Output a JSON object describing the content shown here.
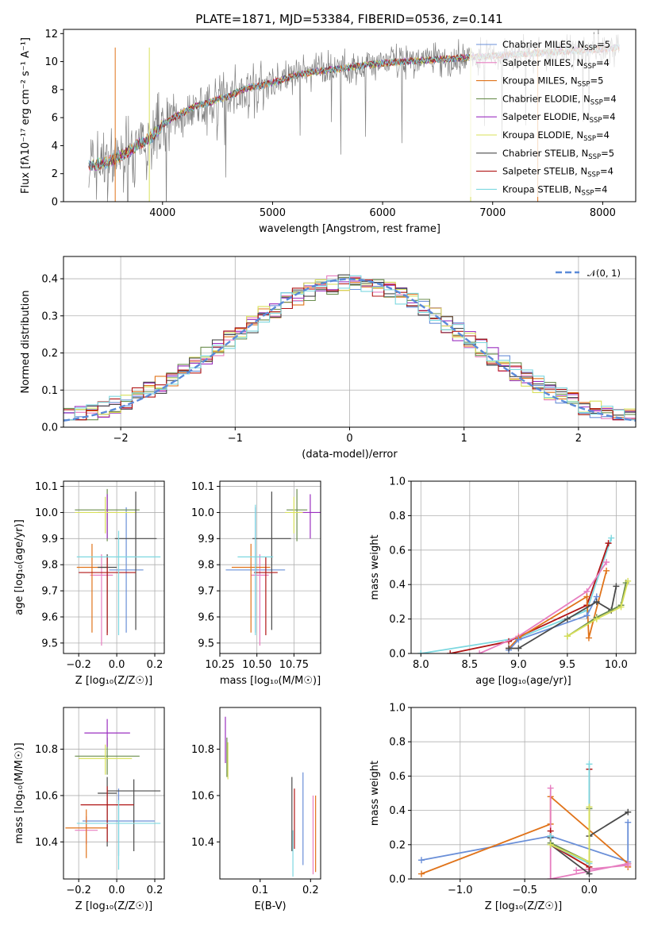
{
  "colors": {
    "chabrier_miles": "#6a8fd8",
    "salpeter_miles": "#e77ec0",
    "kroupa_miles": "#e0731a",
    "chabrier_elodie": "#6b8e4e",
    "salpeter_elodie": "#9b30c0",
    "kroupa_elodie": "#d8e05a",
    "chabrier_stelib": "#4a4a4a",
    "salpeter_stelib": "#b01515",
    "kroupa_stelib": "#7dd8e0",
    "spectrum": "#808080",
    "grid": "#b0b0b0",
    "gaussian": "#5a8ad8"
  },
  "chart_data": [
    {
      "id": "spectrum",
      "type": "line",
      "title": "PLATE=1871, MJD=53384, FIBERID=0536, z=0.141",
      "xlabel": "wavelength [Angstrom, rest frame]",
      "ylabel": "Flux [fλ10⁻¹⁷ erg cm⁻² s⁻¹ A⁻¹]",
      "xlim": [
        3100,
        8300
      ],
      "ylim": [
        0,
        12.3
      ],
      "xticks": [
        "4000",
        "5000",
        "6000",
        "7000",
        "8000"
      ],
      "yticks": [
        "0",
        "2",
        "4",
        "6",
        "8",
        "10",
        "12"
      ],
      "grid": false,
      "legend_position": "right",
      "legend": [
        "Chabrier MILES, N_SSP=5",
        "Salpeter MILES, N_SSP=4",
        "Kroupa MILES, N_SSP=5",
        "Chabrier ELODIE, N_SSP=4",
        "Salpeter ELODIE, N_SSP=4",
        "Kroupa ELODIE, N_SSP=4",
        "Chabrier STELIB, N_SSP=5",
        "Salpeter STELIB, N_SSP=4",
        "Kroupa STELIB, N_SSP=4"
      ],
      "continuum": {
        "x": [
          3330,
          3500,
          3600,
          3700,
          3800,
          3900,
          4000,
          4100,
          4200,
          4300,
          4400,
          4500,
          4600,
          4700,
          4800,
          4900,
          5000,
          5200,
          5400,
          5600,
          5800,
          6000,
          6200,
          6400,
          6600,
          6800,
          7000,
          7200,
          7400,
          7600,
          7800,
          8000,
          8150
        ],
        "y": [
          2.6,
          2.8,
          3.2,
          3.6,
          4.2,
          4.6,
          5.5,
          6.0,
          6.4,
          6.8,
          7.0,
          7.3,
          7.5,
          7.9,
          8.2,
          8.3,
          8.5,
          9.0,
          9.3,
          9.5,
          9.7,
          9.9,
          10.0,
          10.1,
          10.2,
          10.3,
          10.4,
          10.5,
          10.6,
          10.7,
          10.8,
          10.9,
          11.0
        ]
      }
    },
    {
      "id": "residuals",
      "type": "bar",
      "xlabel": "(data-model)/error",
      "ylabel": "Normed distribution",
      "xlim": [
        -2.5,
        2.5
      ],
      "ylim": [
        0,
        0.46
      ],
      "xticks": [
        "−2",
        "−1",
        "0",
        "1",
        "2"
      ],
      "yticks": [
        "0.0",
        "0.1",
        "0.2",
        "0.3",
        "0.4"
      ],
      "grid": true,
      "legend": [
        "𝒩(0, 1)"
      ],
      "legend_position": "top-right",
      "bin_width": 0.1
    },
    {
      "id": "age_vs_Z",
      "type": "scatter",
      "xlabel": "Z [log₁₀(Z/Z☉)]",
      "ylabel": "age  [log₁₀(age/yr)]",
      "xlim": [
        -0.28,
        0.25
      ],
      "ylim": [
        9.46,
        10.12
      ],
      "xticks": [
        "−0.2",
        "0.0",
        "0.2"
      ],
      "yticks": [
        "9.5",
        "9.6",
        "9.7",
        "9.8",
        "9.9",
        "10.0",
        "10.1"
      ],
      "grid": true,
      "points": [
        {
          "key": "chabrier_miles",
          "x": 0.05,
          "y": 9.78,
          "xerr": 0.09,
          "yerr": [
            0.24,
            0.24
          ]
        },
        {
          "key": "salpeter_miles",
          "x": -0.08,
          "y": 9.76,
          "xerr": 0.06,
          "yerr": [
            0.27,
            0.08
          ]
        },
        {
          "key": "kroupa_miles",
          "x": -0.13,
          "y": 9.79,
          "xerr": 0.08,
          "yerr": [
            0.25,
            0.09
          ]
        },
        {
          "key": "chabrier_elodie",
          "x": -0.05,
          "y": 10.01,
          "xerr": 0.17,
          "yerr": [
            0.12,
            0.08
          ]
        },
        {
          "key": "salpeter_elodie",
          "x": -0.05,
          "y": 10.0,
          "xerr": 0.05,
          "yerr": [
            0.1,
            0.07
          ]
        },
        {
          "key": "kroupa_elodie",
          "x": -0.06,
          "y": 10.0,
          "xerr": 0.16,
          "yerr": [
            0.08,
            0.06
          ]
        },
        {
          "key": "chabrier_stelib",
          "x": -0.05,
          "y": 9.79,
          "xerr": 0.05,
          "yerr": [
            0.25,
            0.05
          ]
        },
        {
          "key": "chabrier_stelib_b",
          "x": 0.1,
          "y": 9.9,
          "xerr": 0.11,
          "yerr": [
            0.35,
            0.18
          ]
        },
        {
          "key": "salpeter_stelib",
          "x": -0.05,
          "y": 9.77,
          "xerr": 0.15,
          "yerr": [
            0.24,
            0.06
          ]
        },
        {
          "key": "kroupa_stelib",
          "x": 0.01,
          "y": 9.83,
          "xerr": 0.22,
          "yerr": [
            0.3,
            0.1
          ]
        }
      ]
    },
    {
      "id": "age_vs_mass",
      "type": "scatter",
      "xlabel": "mass [log₁₀(M/M☉)]",
      "xlim": [
        10.25,
        10.93
      ],
      "ylim": [
        9.46,
        10.12
      ],
      "xticks": [
        "10.25",
        "10.50",
        "10.75"
      ],
      "yticks": [
        "9.5",
        "9.6",
        "9.7",
        "9.8",
        "9.9",
        "10.0",
        "10.1"
      ],
      "grid": true,
      "points": [
        {
          "key": "chabrier_miles",
          "x": 10.49,
          "y": 9.78,
          "xerr": 0.2,
          "yerr": [
            0.24,
            0.24
          ]
        },
        {
          "key": "salpeter_miles",
          "x": 10.52,
          "y": 9.76,
          "xerr": 0.06,
          "yerr": [
            0.27,
            0.08
          ]
        },
        {
          "key": "kroupa_miles",
          "x": 10.46,
          "y": 9.79,
          "xerr": 0.13,
          "yerr": [
            0.25,
            0.09
          ]
        },
        {
          "key": "chabrier_elodie",
          "x": 10.77,
          "y": 10.01,
          "xerr": 0.07,
          "yerr": [
            0.12,
            0.08
          ]
        },
        {
          "key": "salpeter_elodie",
          "x": 10.86,
          "y": 10.0,
          "xerr": 0.08,
          "yerr": [
            0.1,
            0.07
          ]
        },
        {
          "key": "kroupa_elodie",
          "x": 10.75,
          "y": 10.0,
          "xerr": 0.06,
          "yerr": [
            0.08,
            0.06
          ]
        },
        {
          "key": "chabrier_stelib",
          "x": 10.6,
          "y": 9.9,
          "xerr": 0.13,
          "yerr": [
            0.35,
            0.18
          ]
        },
        {
          "key": "salpeter_stelib",
          "x": 10.56,
          "y": 9.77,
          "xerr": 0.08,
          "yerr": [
            0.24,
            0.06
          ]
        },
        {
          "key": "kroupa_stelib",
          "x": 10.49,
          "y": 9.83,
          "xerr": 0.12,
          "yerr": [
            0.3,
            0.2
          ]
        }
      ]
    },
    {
      "id": "weight_vs_age",
      "type": "line",
      "xlabel": "age  [log₁₀(age/yr)]",
      "ylabel": "mass weight",
      "xlim": [
        7.9,
        10.2
      ],
      "ylim": [
        0,
        1.0
      ],
      "xticks": [
        "8.0",
        "8.5",
        "9.0",
        "9.5",
        "10.0"
      ],
      "yticks": [
        "0.0",
        "0.2",
        "0.4",
        "0.6",
        "0.8",
        "1.0"
      ],
      "grid": true,
      "series": [
        {
          "key": "kroupa_stelib",
          "x": [
            8.0,
            9.0,
            9.7,
            9.95
          ],
          "y": [
            0.0,
            0.09,
            0.25,
            0.67
          ]
        },
        {
          "key": "salpeter_stelib",
          "x": [
            8.3,
            8.9,
            9.7,
            9.92
          ],
          "y": [
            0.0,
            0.07,
            0.28,
            0.64
          ]
        },
        {
          "key": "salpeter_miles",
          "x": [
            8.6,
            9.0,
            9.7,
            9.9
          ],
          "y": [
            0.0,
            0.1,
            0.36,
            0.53
          ]
        },
        {
          "key": "kroupa_miles",
          "x": [
            8.9,
            9.0,
            9.7,
            9.72,
            9.9
          ],
          "y": [
            0.03,
            0.09,
            0.33,
            0.09,
            0.48
          ]
        },
        {
          "key": "chabrier_miles",
          "x": [
            8.9,
            9.0,
            9.7,
            9.8
          ],
          "y": [
            0.02,
            0.08,
            0.22,
            0.33
          ]
        },
        {
          "key": "chabrier_stelib",
          "x": [
            8.9,
            9.0,
            9.5,
            9.8,
            9.95,
            10.0
          ],
          "y": [
            0.03,
            0.03,
            0.2,
            0.3,
            0.25,
            0.39
          ]
        },
        {
          "key": "chabrier_elodie",
          "x": [
            9.5,
            9.8,
            10.05,
            10.1
          ],
          "y": [
            0.1,
            0.21,
            0.28,
            0.41
          ]
        },
        {
          "key": "kroupa_elodie",
          "x": [
            9.5,
            9.8,
            10.05,
            10.12
          ],
          "y": [
            0.1,
            0.2,
            0.27,
            0.42
          ]
        }
      ]
    },
    {
      "id": "mass_vs_Z",
      "type": "scatter",
      "xlabel": "Z [log₁₀(Z/Z☉)]",
      "ylabel": "mass [log₁₀(M/M☉)]",
      "xlim": [
        -0.28,
        0.25
      ],
      "ylim": [
        10.24,
        10.98
      ],
      "xticks": [
        "−0.2",
        "0.0",
        "0.2"
      ],
      "yticks": [
        "10.4",
        "10.6",
        "10.8"
      ],
      "grid": true,
      "points": [
        {
          "key": "chabrier_miles",
          "x": 0.01,
          "y": 10.49,
          "xerr": 0.19,
          "yerr": [
            0.15,
            0.14
          ]
        },
        {
          "key": "salpeter_miles",
          "x": -0.16,
          "y": 10.45,
          "xerr": 0.06,
          "yerr": [
            0.06,
            0.06
          ]
        },
        {
          "key": "kroupa_miles",
          "x": -0.16,
          "y": 10.46,
          "xerr": 0.11,
          "yerr": [
            0.13,
            0.08
          ]
        },
        {
          "key": "chabrier_elodie",
          "x": -0.05,
          "y": 10.77,
          "xerr": 0.17,
          "yerr": [
            0.08,
            0.08
          ]
        },
        {
          "key": "salpeter_elodie",
          "x": -0.05,
          "y": 10.87,
          "xerr": 0.12,
          "yerr": [
            0.06,
            0.06
          ]
        },
        {
          "key": "kroupa_elodie",
          "x": -0.06,
          "y": 10.76,
          "xerr": 0.14,
          "yerr": [
            0.07,
            0.06
          ]
        },
        {
          "key": "chabrier_stelib",
          "x": -0.05,
          "y": 10.61,
          "xerr": 0.05,
          "yerr": [
            0.23,
            0.07
          ]
        },
        {
          "key": "chabrier_stelib_b",
          "x": 0.09,
          "y": 10.62,
          "xerr": 0.14,
          "yerr": [
            0.26,
            0.05
          ]
        },
        {
          "key": "salpeter_stelib",
          "x": -0.05,
          "y": 10.56,
          "xerr": 0.14,
          "yerr": [
            0.16,
            0.08
          ]
        },
        {
          "key": "kroupa_stelib",
          "x": 0.01,
          "y": 10.48,
          "xerr": 0.22,
          "yerr": [
            0.2,
            0.1
          ]
        }
      ]
    },
    {
      "id": "mass_vs_ebv",
      "type": "scatter",
      "xlabel": "E(B-V)",
      "xlim": [
        0.02,
        0.22
      ],
      "ylim": [
        10.24,
        10.98
      ],
      "xticks": [
        "0.1",
        "0.2"
      ],
      "yticks": [
        "10.4",
        "10.6",
        "10.8"
      ],
      "grid": false,
      "points": [
        {
          "key": "salpeter_elodie",
          "x": 0.031,
          "y": 10.84,
          "yerr": [
            0.1,
            0.1
          ]
        },
        {
          "key": "chabrier_elodie",
          "x": 0.034,
          "y": 10.78,
          "yerr": [
            0.1,
            0.07
          ]
        },
        {
          "key": "kroupa_elodie",
          "x": 0.036,
          "y": 10.77,
          "yerr": [
            0.1,
            0.06
          ]
        },
        {
          "key": "chabrier_stelib",
          "x": 0.163,
          "y": 10.52,
          "yerr": [
            0.16,
            0.16
          ]
        },
        {
          "key": "kroupa_stelib",
          "x": 0.165,
          "y": 10.35,
          "yerr": [
            0.1,
            0.1
          ]
        },
        {
          "key": "salpeter_stelib",
          "x": 0.168,
          "y": 10.5,
          "yerr": [
            0.13,
            0.13
          ]
        },
        {
          "key": "chabrier_miles",
          "x": 0.185,
          "y": 10.5,
          "yerr": [
            0.2,
            0.2
          ]
        },
        {
          "key": "salpeter_miles",
          "x": 0.205,
          "y": 10.43,
          "yerr": [
            0.17,
            0.17
          ]
        },
        {
          "key": "kroupa_miles",
          "x": 0.21,
          "y": 10.44,
          "yerr": [
            0.17,
            0.16
          ]
        }
      ]
    },
    {
      "id": "weight_vs_Z",
      "type": "line",
      "xlabel": "Z [log₁₀(Z/Z☉)]",
      "ylabel": "mass weight",
      "xlim": [
        -1.38,
        0.36
      ],
      "ylim": [
        0,
        1.0
      ],
      "xticks": [
        "−1.0",
        "−0.5",
        "0.0"
      ],
      "yticks": [
        "0.0",
        "0.2",
        "0.4",
        "0.6",
        "0.8",
        "1.0"
      ],
      "grid": true,
      "series": [
        {
          "key": "chabrier_miles",
          "x": [
            -1.3,
            -0.3,
            0.3,
            0.3
          ],
          "y": [
            0.11,
            0.25,
            0.1,
            0.33
          ]
        },
        {
          "key": "kroupa_miles",
          "x": [
            -1.3,
            -0.3,
            -0.3,
            0.3,
            0.3
          ],
          "y": [
            0.03,
            0.32,
            0.48,
            0.09,
            0.07
          ]
        },
        {
          "key": "salpeter_miles",
          "x": [
            -0.3,
            -0.3,
            0.3,
            0.3,
            -0.1
          ],
          "y": [
            0.53,
            0.0,
            0.09,
            0.08,
            0.05
          ]
        },
        {
          "key": "chabrier_stelib",
          "x": [
            -0.3,
            -0.3,
            0.0,
            0.0,
            0.3
          ],
          "y": [
            0.24,
            0.2,
            0.03,
            0.25,
            0.39
          ]
        },
        {
          "key": "salpeter_stelib",
          "x": [
            -0.3,
            -0.3,
            0.0,
            0.0
          ],
          "y": [
            0.28,
            0.2,
            0.07,
            0.64
          ]
        },
        {
          "key": "kroupa_stelib",
          "x": [
            -0.3,
            -0.3,
            0.0,
            0.0
          ],
          "y": [
            0.25,
            0.2,
            0.09,
            0.67
          ]
        },
        {
          "key": "chabrier_elodie",
          "x": [
            0.0,
            0.0,
            -0.3
          ],
          "y": [
            0.41,
            0.1,
            0.21
          ]
        },
        {
          "key": "kroupa_elodie",
          "x": [
            0.0,
            0.0,
            -0.3
          ],
          "y": [
            0.42,
            0.1,
            0.2
          ]
        }
      ]
    }
  ]
}
